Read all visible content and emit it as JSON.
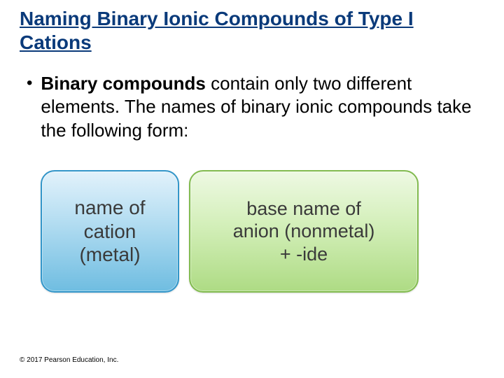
{
  "title": {
    "text": "Naming Binary Ionic Compounds of Type I Cations",
    "color": "#0a3a7a"
  },
  "bullet": {
    "marker": "•",
    "bold_lead": "Binary compounds",
    "rest": " contain only two different elements. The names of binary ionic compounds take the following form:"
  },
  "boxes": {
    "blue": {
      "lines": [
        "name of",
        "cation",
        "(metal)"
      ],
      "border": "#3396c9",
      "gradient_top": "#e2f2fb",
      "gradient_mid": "#b6def2",
      "gradient_bottom": "#6fbde1"
    },
    "green": {
      "lines": [
        "base name of",
        "anion (nonmetal)",
        "+ -ide"
      ],
      "border": "#82bb4f",
      "gradient_top": "#eef9e3",
      "gradient_mid": "#d3efb9",
      "gradient_bottom": "#aedb84"
    }
  },
  "copyright": "© 2017 Pearson Education, Inc.",
  "colors": {
    "title": "#0a3a7a",
    "body_text": "#000000",
    "box_text": "#3a3a3a"
  }
}
